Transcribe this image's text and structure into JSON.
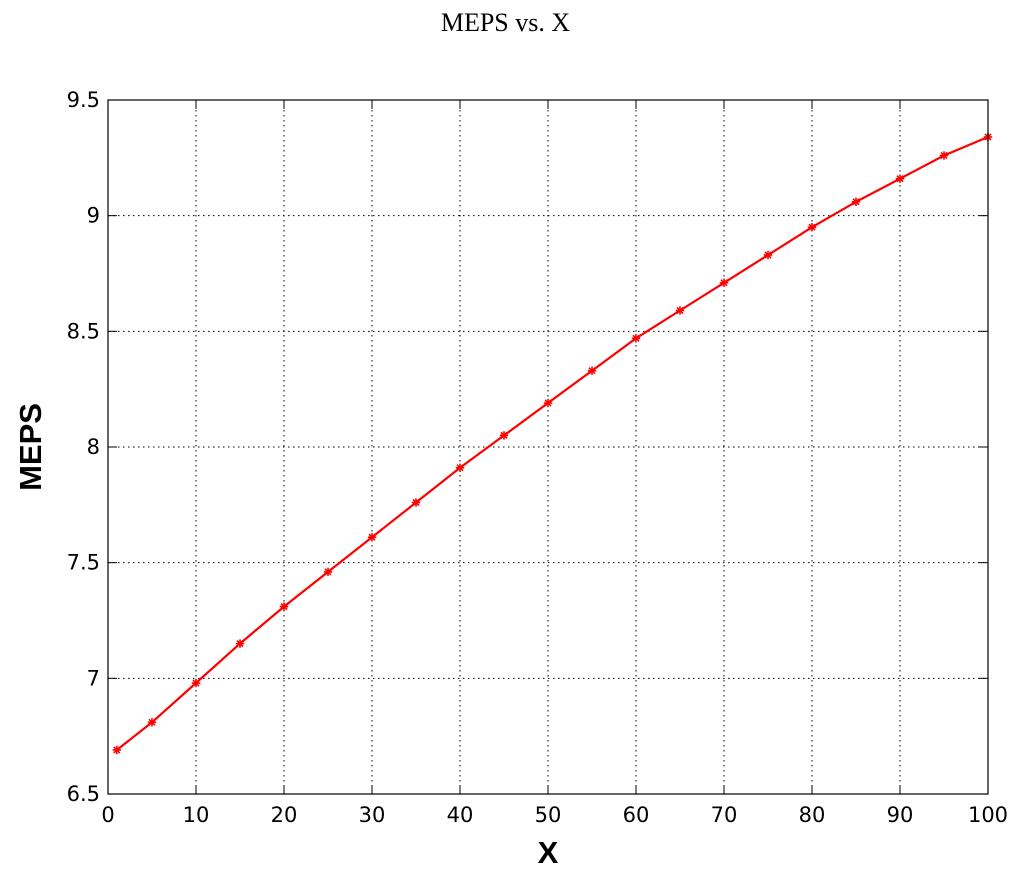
{
  "chart_data": {
    "type": "line",
    "title": "MEPS vs. X",
    "xlabel": "X",
    "ylabel": "MEPS",
    "xlim": [
      0,
      100
    ],
    "ylim": [
      6.5,
      9.5
    ],
    "xticks": [
      0,
      10,
      20,
      30,
      40,
      50,
      60,
      70,
      80,
      90,
      100
    ],
    "yticks": [
      6.5,
      7,
      7.5,
      8,
      8.5,
      9,
      9.5
    ],
    "xtick_labels": [
      "0",
      "10",
      "20",
      "30",
      "40",
      "50",
      "60",
      "70",
      "80",
      "90",
      "100"
    ],
    "ytick_labels": [
      "6.5",
      "7",
      "7.5",
      "8",
      "8.5",
      "9",
      "9.5"
    ],
    "grid": true,
    "grid_style": "dotted",
    "marker": "*",
    "series": [
      {
        "color": "#ff0000",
        "x": [
          1,
          5,
          10,
          15,
          20,
          25,
          30,
          35,
          40,
          45,
          50,
          55,
          60,
          65,
          70,
          75,
          80,
          85,
          90,
          95,
          100
        ],
        "y": [
          6.69,
          6.81,
          6.98,
          7.15,
          7.31,
          7.46,
          7.61,
          7.76,
          7.91,
          8.05,
          8.19,
          8.33,
          8.47,
          8.59,
          8.71,
          8.83,
          8.95,
          9.06,
          9.16,
          9.26,
          9.34
        ]
      }
    ]
  }
}
